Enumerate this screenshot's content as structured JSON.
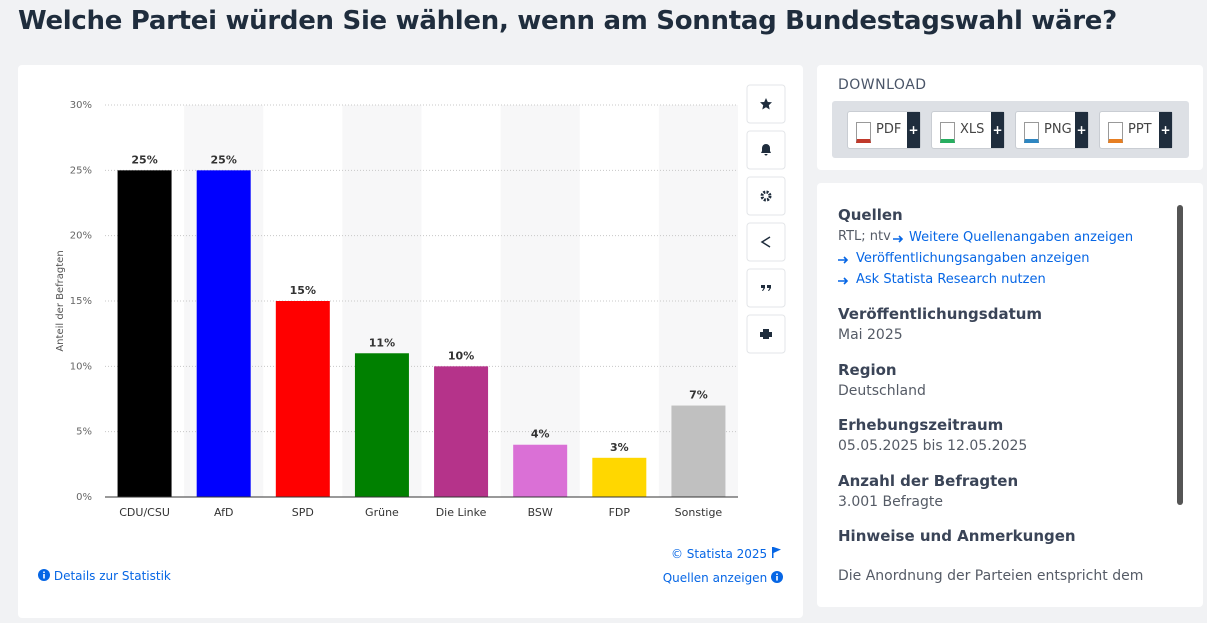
{
  "header": {
    "title": "Welche Partei würden Sie wählen, wenn am Sonntag Bundestagswahl wäre?"
  },
  "chart_data": {
    "type": "bar",
    "y_label": "Anteil der Befragten",
    "categories": [
      "CDU/CSU",
      "AfD",
      "SPD",
      "Grüne",
      "Die Linke",
      "BSW",
      "FDP",
      "Sonstige"
    ],
    "values": [
      25,
      25,
      15,
      11,
      10,
      4,
      3,
      7
    ],
    "value_labels": [
      "25%",
      "25%",
      "15%",
      "11%",
      "10%",
      "4%",
      "3%",
      "7%"
    ],
    "colors": [
      "#000000",
      "#0000ff",
      "#ff0000",
      "#008000",
      "#b5338a",
      "#da70d6",
      "#ffd700",
      "#c0c0c0"
    ],
    "ylim": [
      0,
      30
    ],
    "yticks": [
      {
        "value": 0,
        "label": "0%"
      },
      {
        "value": 5,
        "label": "5%"
      },
      {
        "value": 10,
        "label": "10%"
      },
      {
        "value": 15,
        "label": "15%"
      },
      {
        "value": 20,
        "label": "20%"
      },
      {
        "value": 25,
        "label": "25%"
      },
      {
        "value": 30,
        "label": "30%"
      }
    ],
    "grid": true
  },
  "chart_footer": {
    "credit": "© Statista 2025",
    "details": "Details zur Statistik",
    "sources": "Quellen anzeigen"
  },
  "download": {
    "title": "DOWNLOAD",
    "buttons": [
      {
        "label": "PDF",
        "extra": "+"
      },
      {
        "label": "XLS",
        "extra": "+"
      },
      {
        "label": "PNG",
        "extra": "+"
      },
      {
        "label": "PPT",
        "extra": "+"
      }
    ]
  },
  "info": {
    "sources_heading": "Quellen",
    "sources_text": "RTL; ntv",
    "links": [
      "Weitere Quellenangaben anzeigen",
      "Veröffentlichungsangaben anzeigen",
      "Ask Statista Research nutzen"
    ],
    "sections": [
      {
        "heading": "Veröffentlichungsdatum",
        "text": "Mai 2025"
      },
      {
        "heading": "Region",
        "text": "Deutschland"
      },
      {
        "heading": "Erhebungszeitraum",
        "text": "05.05.2025 bis 12.05.2025"
      },
      {
        "heading": "Anzahl der Befragten",
        "text": "3.001 Befragte"
      },
      {
        "heading": "Hinweise und Anmerkungen",
        "text": "Die Anordnung der Parteien entspricht dem"
      }
    ]
  }
}
